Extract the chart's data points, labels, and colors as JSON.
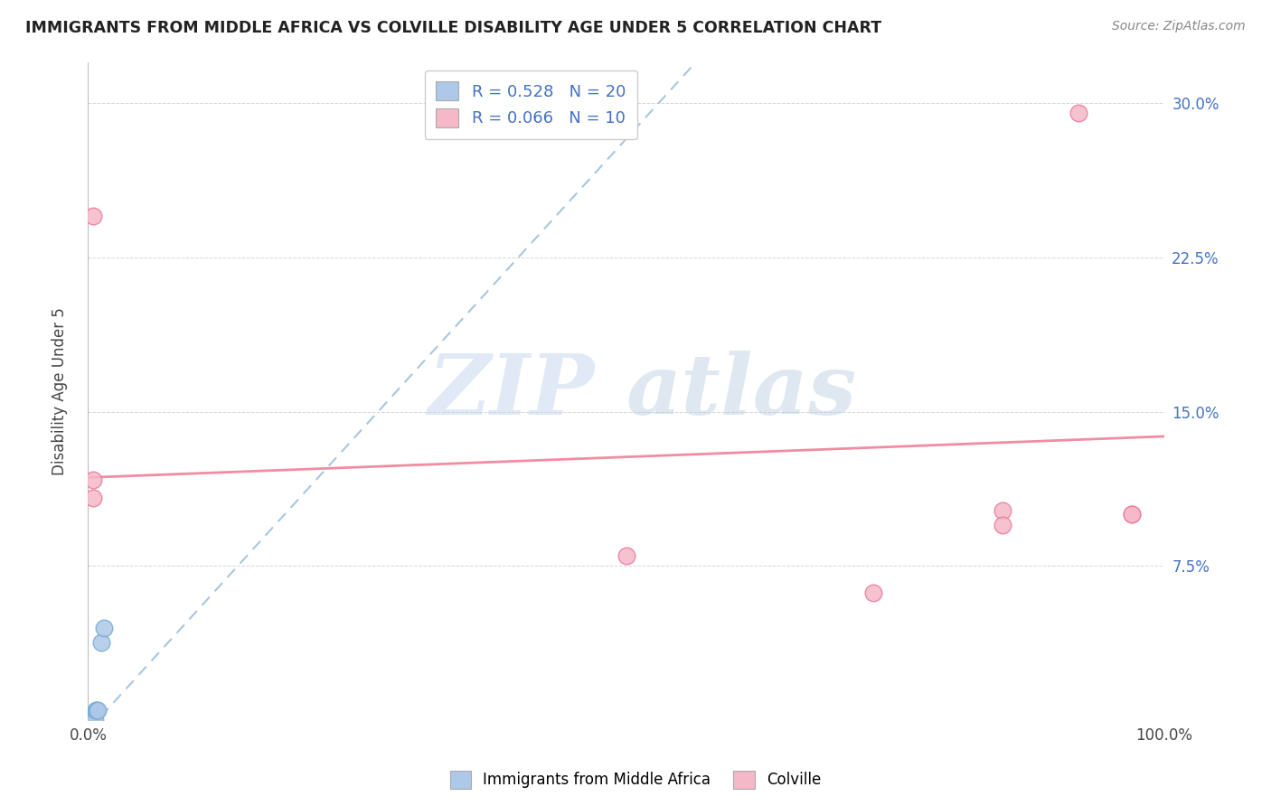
{
  "title": "IMMIGRANTS FROM MIDDLE AFRICA VS COLVILLE DISABILITY AGE UNDER 5 CORRELATION CHART",
  "source": "Source: ZipAtlas.com",
  "ylabel": "Disability Age Under 5",
  "xlim": [
    0,
    1.0
  ],
  "ylim": [
    0,
    0.32
  ],
  "xticks": [
    0.0,
    0.25,
    0.5,
    0.75,
    1.0
  ],
  "xtick_labels": [
    "0.0%",
    "",
    "",
    "",
    "100.0%"
  ],
  "ytick_labels_right": [
    "",
    "7.5%",
    "15.0%",
    "22.5%",
    "30.0%"
  ],
  "yticks_right": [
    0.0,
    0.075,
    0.15,
    0.225,
    0.3
  ],
  "blue_R": 0.528,
  "blue_N": 20,
  "pink_R": 0.066,
  "pink_N": 10,
  "blue_color": "#adc8e8",
  "blue_edge": "#7aaad4",
  "pink_color": "#f5b8c8",
  "pink_edge": "#e87a9a",
  "blue_trend_color": "#8ab4d8",
  "pink_trend_color": "#f08098",
  "watermark_zip": "ZIP",
  "watermark_atlas": "atlas",
  "legend_label_blue": "Immigrants from Middle Africa",
  "legend_label_pink": "Colville",
  "blue_points_x": [
    0.001,
    0.001,
    0.001,
    0.001,
    0.002,
    0.002,
    0.002,
    0.003,
    0.003,
    0.003,
    0.004,
    0.004,
    0.005,
    0.005,
    0.006,
    0.007,
    0.008,
    0.009,
    0.012,
    0.015
  ],
  "blue_points_y": [
    0.0,
    0.0,
    0.0,
    0.0,
    0.0,
    0.0,
    0.0,
    0.0,
    0.0,
    0.0,
    0.0,
    0.0,
    0.0,
    0.0,
    0.0,
    0.005,
    0.005,
    0.005,
    0.038,
    0.045
  ],
  "pink_points_x": [
    0.005,
    0.005,
    0.005,
    0.5,
    0.73,
    0.85,
    0.85,
    0.92,
    0.97,
    0.97
  ],
  "pink_points_y": [
    0.117,
    0.108,
    0.245,
    0.08,
    0.062,
    0.102,
    0.095,
    0.295,
    0.1,
    0.1
  ],
  "blue_trend_x0": 0.0,
  "blue_trend_y0": -0.005,
  "blue_trend_x1": 0.565,
  "blue_trend_y1": 0.32,
  "pink_trend_x0": 0.0,
  "pink_trend_y0": 0.118,
  "pink_trend_x1": 1.0,
  "pink_trend_y1": 0.138
}
